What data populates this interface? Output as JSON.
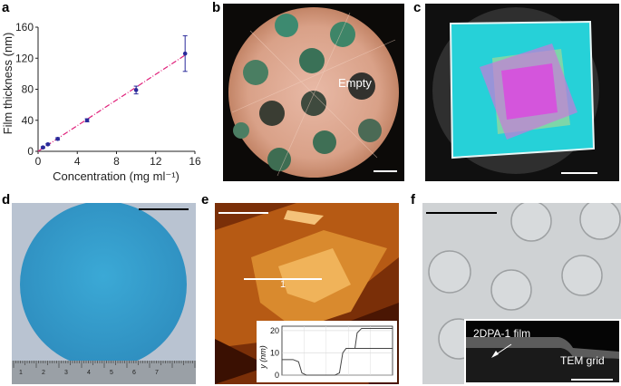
{
  "panels": {
    "a": {
      "letter": "a"
    },
    "b": {
      "letter": "b",
      "label": "Empty"
    },
    "c": {
      "letter": "c"
    },
    "d": {
      "letter": "d",
      "ruler_numbers": [
        "1",
        "2",
        "3",
        "4",
        "5",
        "6",
        "7"
      ]
    },
    "e": {
      "letter": "e",
      "line_label": "1"
    },
    "f": {
      "letter": "f",
      "film_label": "2DPA-1 film",
      "grid_label": "TEM grid"
    }
  },
  "chart_data": [
    {
      "type": "scatter",
      "title": "",
      "xlabel": "Concentration (mg ml⁻¹)",
      "ylabel": "Film thickness (nm)",
      "xlim": [
        0,
        16
      ],
      "ylim": [
        0,
        160
      ],
      "xticks": [
        0,
        4,
        8,
        12,
        16
      ],
      "yticks": [
        0,
        40,
        80,
        120,
        160
      ],
      "points": [
        {
          "x": 0.5,
          "y": 5,
          "err": 1
        },
        {
          "x": 1,
          "y": 9,
          "err": 1
        },
        {
          "x": 2,
          "y": 16,
          "err": 1.5
        },
        {
          "x": 5,
          "y": 40,
          "err": 2
        },
        {
          "x": 10,
          "y": 79,
          "err": 5
        },
        {
          "x": 15,
          "y": 126,
          "err": 23
        }
      ],
      "fit": {
        "x": [
          0,
          15
        ],
        "y": [
          0,
          124
        ],
        "style": "dash-dot"
      },
      "colors": {
        "points": "#2a2a9a",
        "fit": "#e0207a"
      }
    },
    {
      "type": "line",
      "title": "",
      "xlabel": "",
      "ylabel": "y (nm)",
      "ylim": [
        0,
        22
      ],
      "yticks": [
        0,
        10,
        20
      ],
      "x": [
        0,
        5,
        10,
        15,
        18,
        22,
        30,
        40,
        48,
        52,
        55,
        58,
        62,
        70,
        80,
        90,
        100
      ],
      "y": [
        7,
        7,
        7,
        6,
        1,
        0,
        0,
        0,
        0,
        1,
        10,
        12,
        12,
        12,
        12,
        12,
        12
      ],
      "x2": [
        62,
        66,
        68,
        72,
        80,
        90,
        100
      ],
      "y2": [
        12,
        12,
        19,
        21,
        21,
        21,
        21
      ]
    }
  ]
}
